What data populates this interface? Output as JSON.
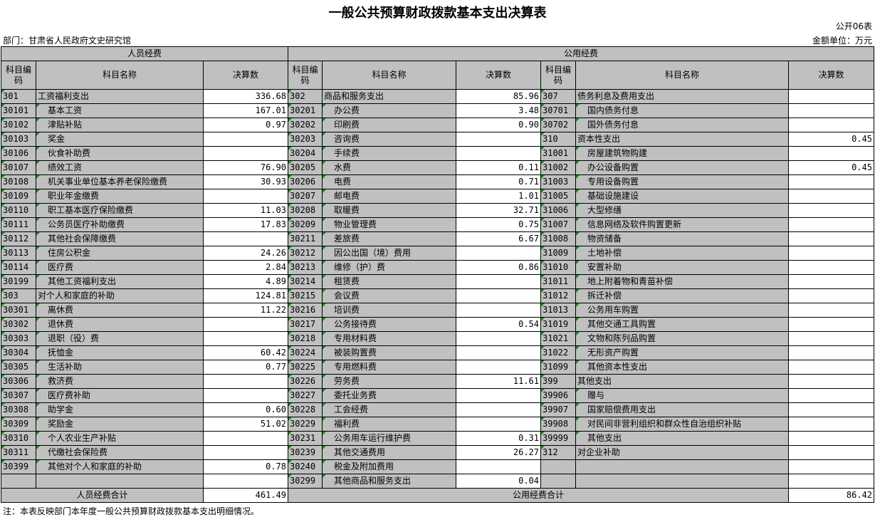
{
  "title": "一般公共预算财政拨款基本支出决算表",
  "form_no": "公开06表",
  "department": "部门：甘肃省人民政府文史研究馆",
  "unit": "金额单位：万元",
  "headers": {
    "personnel": "人员经费",
    "public": "公用经费",
    "code": "科目编码",
    "name": "科目名称",
    "amount": "决算数"
  },
  "colors": {
    "header_bg": "#c0c0c0",
    "marker": "#1a8a1a"
  },
  "left_rows": [
    [
      "301",
      "工资福利支出",
      "336.68"
    ],
    [
      "30101",
      "基本工资",
      "167.01"
    ],
    [
      "30102",
      "津贴补贴",
      "0.97"
    ],
    [
      "30103",
      "奖金",
      ""
    ],
    [
      "30106",
      "伙食补助费",
      ""
    ],
    [
      "30107",
      "绩效工资",
      "76.90"
    ],
    [
      "30108",
      "机关事业单位基本养老保险缴费",
      "30.93"
    ],
    [
      "30109",
      "职业年金缴费",
      ""
    ],
    [
      "30110",
      "职工基本医疗保险缴费",
      "11.03"
    ],
    [
      "30111",
      "公务员医疗补助缴费",
      "17.83"
    ],
    [
      "30112",
      "其他社会保障缴费",
      ""
    ],
    [
      "30113",
      "住房公积金",
      "24.26"
    ],
    [
      "30114",
      "医疗费",
      "2.84"
    ],
    [
      "30199",
      "其他工资福利支出",
      "4.89"
    ],
    [
      "303",
      "对个人和家庭的补助",
      "124.81"
    ],
    [
      "30301",
      "离休费",
      "11.22"
    ],
    [
      "30302",
      "退休费",
      ""
    ],
    [
      "30303",
      "退职（役）费",
      ""
    ],
    [
      "30304",
      "抚恤金",
      "60.42"
    ],
    [
      "30305",
      "生活补助",
      "0.77"
    ],
    [
      "30306",
      "救济费",
      ""
    ],
    [
      "30307",
      "医疗费补助",
      ""
    ],
    [
      "30308",
      "助学金",
      "0.60"
    ],
    [
      "30309",
      "奖励金",
      "51.02"
    ],
    [
      "30310",
      "个人农业生产补贴",
      ""
    ],
    [
      "30311",
      "代缴社会保险费",
      ""
    ],
    [
      "30399",
      "其他对个人和家庭的补助",
      "0.78"
    ],
    [
      "",
      "",
      ""
    ]
  ],
  "mid_rows": [
    [
      "302",
      "商品和服务支出",
      "85.96"
    ],
    [
      "30201",
      "办公费",
      "3.48"
    ],
    [
      "30202",
      "印刷费",
      "0.90"
    ],
    [
      "30203",
      "咨询费",
      ""
    ],
    [
      "30204",
      "手续费",
      ""
    ],
    [
      "30205",
      "水费",
      "0.11"
    ],
    [
      "30206",
      "电费",
      "0.71"
    ],
    [
      "30207",
      "邮电费",
      "1.01"
    ],
    [
      "30208",
      "取暖费",
      "32.71"
    ],
    [
      "30209",
      "物业管理费",
      "0.75"
    ],
    [
      "30211",
      "差旅费",
      "6.67"
    ],
    [
      "30212",
      "因公出国（境）费用",
      ""
    ],
    [
      "30213",
      "维修（护）费",
      "0.86"
    ],
    [
      "30214",
      "租赁费",
      ""
    ],
    [
      "30215",
      "会议费",
      ""
    ],
    [
      "30216",
      "培训费",
      ""
    ],
    [
      "30217",
      "公务接待费",
      "0.54"
    ],
    [
      "30218",
      "专用材料费",
      ""
    ],
    [
      "30224",
      "被装购置费",
      ""
    ],
    [
      "30225",
      "专用燃料费",
      ""
    ],
    [
      "30226",
      "劳务费",
      "11.61"
    ],
    [
      "30227",
      "委托业务费",
      ""
    ],
    [
      "30228",
      "工会经费",
      ""
    ],
    [
      "30229",
      "福利费",
      ""
    ],
    [
      "30231",
      "公务用车运行维护费",
      "0.31"
    ],
    [
      "30239",
      "其他交通费用",
      "26.27"
    ],
    [
      "30240",
      "税金及附加费用",
      ""
    ],
    [
      "30299",
      "其他商品和服务支出",
      "0.04"
    ]
  ],
  "right_rows": [
    [
      "307",
      "债务利息及费用支出",
      ""
    ],
    [
      "30701",
      "国内债务付息",
      ""
    ],
    [
      "30702",
      "国外债务付息",
      ""
    ],
    [
      "310",
      "资本性支出",
      "0.45"
    ],
    [
      "31001",
      "房屋建筑物购建",
      ""
    ],
    [
      "31002",
      "办公设备购置",
      "0.45"
    ],
    [
      "31003",
      "专用设备购置",
      ""
    ],
    [
      "31005",
      "基础设施建设",
      ""
    ],
    [
      "31006",
      "大型修缮",
      ""
    ],
    [
      "31007",
      "信息网络及软件购置更新",
      ""
    ],
    [
      "31008",
      "物资储备",
      ""
    ],
    [
      "31009",
      "土地补偿",
      ""
    ],
    [
      "31010",
      "安置补助",
      ""
    ],
    [
      "31011",
      "地上附着物和青苗补偿",
      ""
    ],
    [
      "31012",
      "拆迁补偿",
      ""
    ],
    [
      "31013",
      "公务用车购置",
      ""
    ],
    [
      "31019",
      "其他交通工具购置",
      ""
    ],
    [
      "31021",
      "文物和陈列品购置",
      ""
    ],
    [
      "31022",
      "无形资产购置",
      ""
    ],
    [
      "31099",
      "其他资本性支出",
      ""
    ],
    [
      "399",
      "其他支出",
      ""
    ],
    [
      "39906",
      "赠与",
      ""
    ],
    [
      "39907",
      "国家赔偿费用支出",
      ""
    ],
    [
      "39908",
      "对民间非营利组织和群众性自治组织补贴",
      ""
    ],
    [
      "39999",
      "其他支出",
      ""
    ],
    [
      "312",
      "对企业补助",
      ""
    ],
    [
      "",
      "",
      ""
    ],
    [
      "",
      "",
      ""
    ]
  ],
  "totals": {
    "personnel_label": "人员经费合计",
    "personnel_value": "461.49",
    "public_label": "公用经费合计",
    "public_value": "86.42"
  },
  "note": "注：本表反映部门本年度一般公共预算财政拨款基本支出明细情况。"
}
